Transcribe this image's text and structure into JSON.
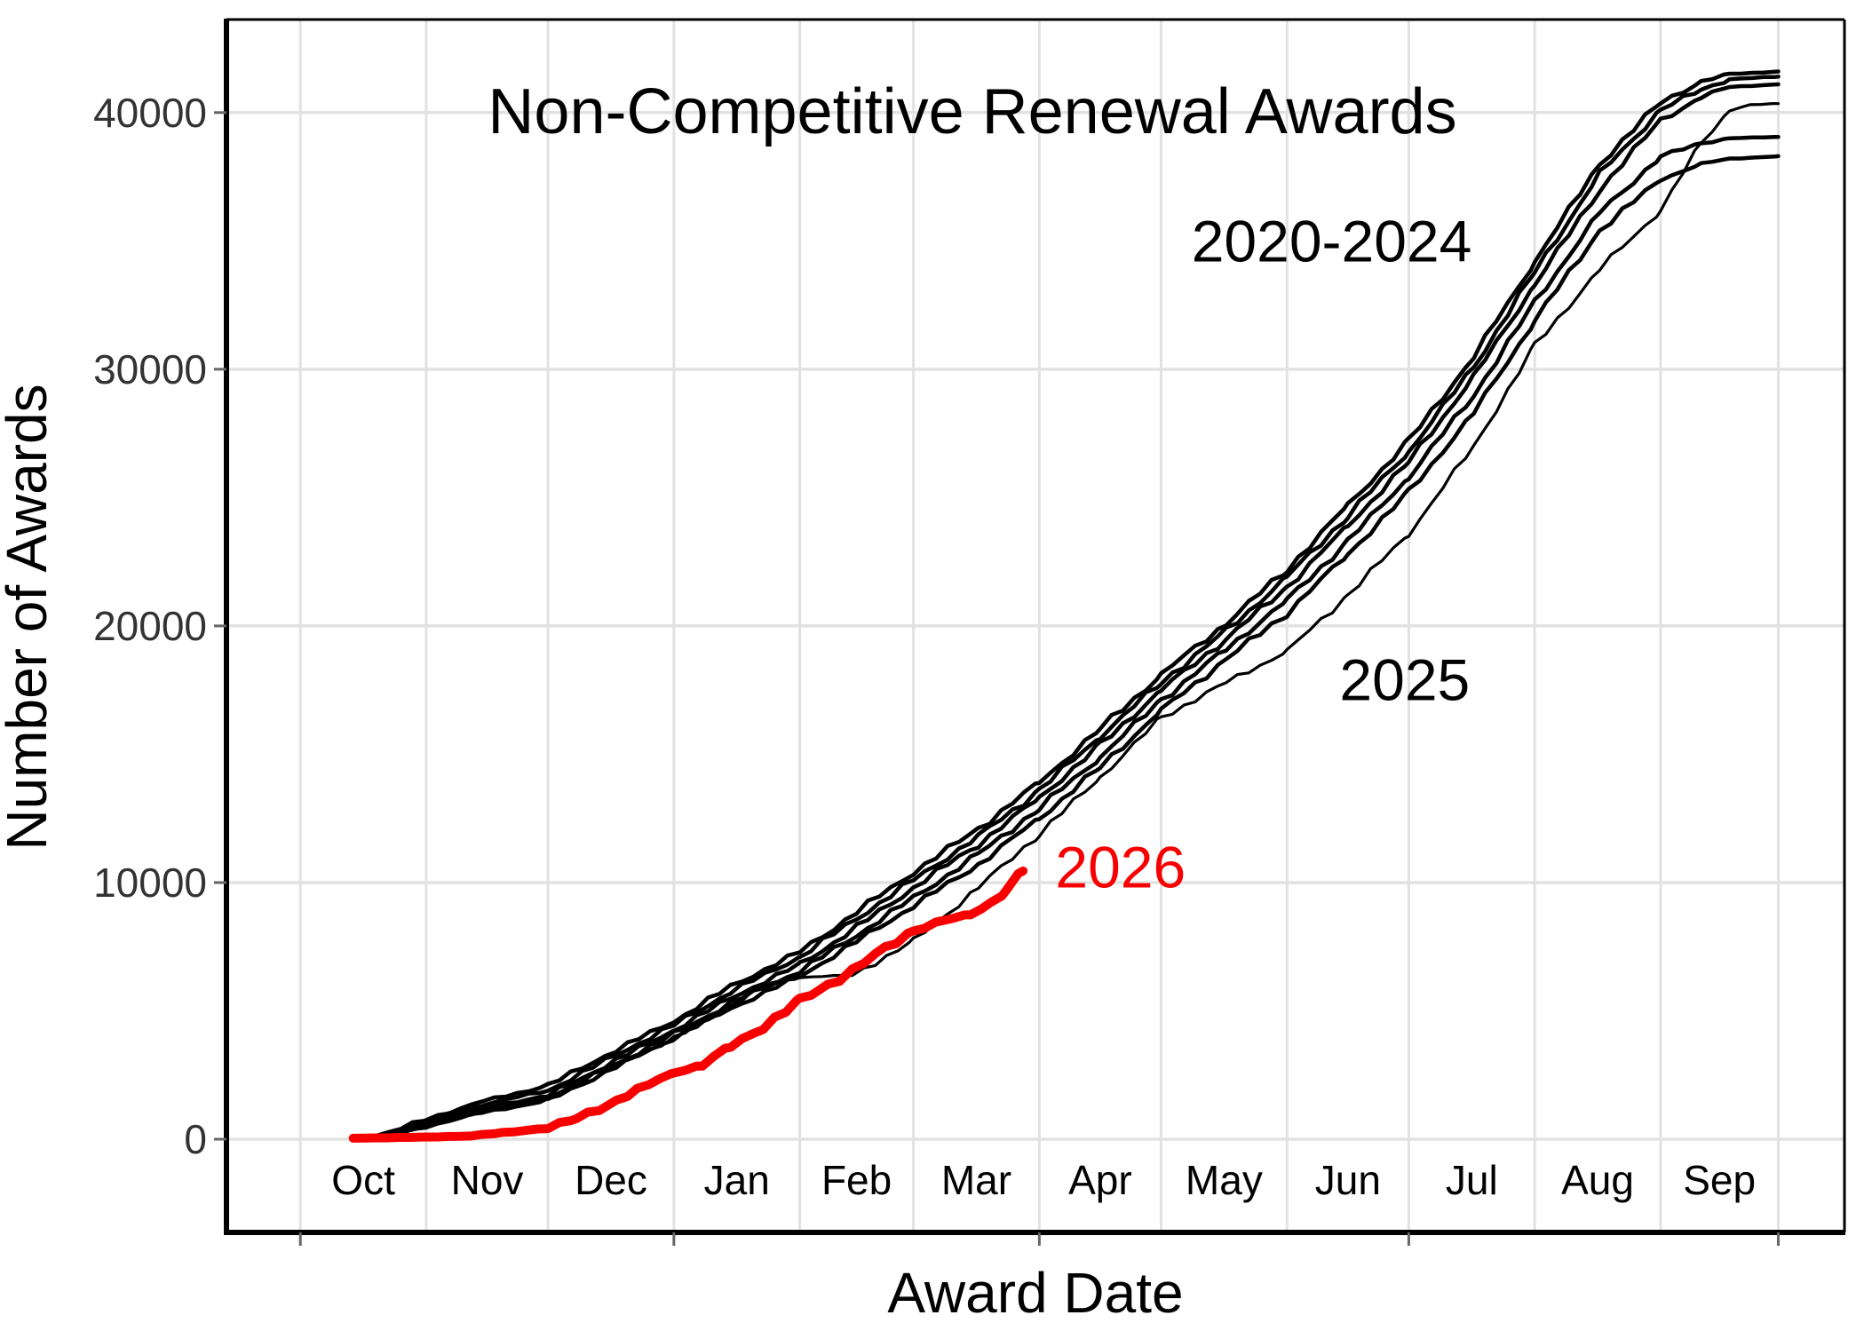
{
  "chart_data": {
    "type": "line",
    "title": "Non-Competitive Renewal Awards",
    "xlabel": "Award Date",
    "ylabel": "Number of Awards",
    "x_unit": "days since Oct 1 (federal fiscal year)",
    "month_labels": [
      "Oct",
      "Nov",
      "Dec",
      "Jan",
      "Feb",
      "Mar",
      "Apr",
      "May",
      "Jun",
      "Jul",
      "Aug",
      "Sep"
    ],
    "month_boundary_days": [
      0,
      31,
      61,
      92,
      123,
      151,
      182,
      212,
      243,
      273,
      304,
      335,
      364
    ],
    "month_label_days": [
      15.5,
      46,
      76.5,
      107.5,
      137,
      166.5,
      197,
      227.5,
      258,
      288.5,
      319.5,
      349.5
    ],
    "x_axis_tick_days": [
      0,
      92,
      182,
      273,
      364
    ],
    "y_ticks": [
      0,
      10000,
      20000,
      30000,
      40000
    ],
    "y_tick_labels": [
      "0",
      "10000",
      "20000",
      "30000",
      "40000"
    ],
    "ylim": [
      -3632,
      43625
    ],
    "xlim_days": [
      -18.2,
      380.3
    ],
    "grid": true,
    "legend": "none (direct line annotations)",
    "colors": {
      "historical_line": "#000000",
      "line_2025": "#000000",
      "line_2026": "#F80000",
      "gridline": "#E2E2E2",
      "y_tick_text": "#333333",
      "x_tick_text": "#000000",
      "axis_line": "#000000",
      "background": "#FFFFFF"
    },
    "series": [
      {
        "name": "2020",
        "group": "2020-2024",
        "color": "#000000",
        "width": 4.5,
        "points": [
          [
            13,
            0
          ],
          [
            22,
            120
          ],
          [
            31,
            500
          ],
          [
            45,
            1050
          ],
          [
            61,
            1500
          ],
          [
            75,
            2600
          ],
          [
            92,
            3950
          ],
          [
            106,
            5100
          ],
          [
            123,
            6350
          ],
          [
            137,
            7700
          ],
          [
            151,
            9100
          ],
          [
            167,
            10700
          ],
          [
            182,
            12500
          ],
          [
            197,
            14500
          ],
          [
            212,
            16700
          ],
          [
            228,
            18700
          ],
          [
            243,
            20500
          ],
          [
            258,
            22800
          ],
          [
            273,
            25200
          ],
          [
            289,
            28300
          ],
          [
            304,
            31900
          ],
          [
            320,
            35400
          ],
          [
            335,
            37400
          ],
          [
            345,
            38000
          ],
          [
            352,
            38200
          ],
          [
            364,
            38300
          ]
        ]
      },
      {
        "name": "2021",
        "group": "2020-2024",
        "color": "#000000",
        "width": 4.5,
        "points": [
          [
            13,
            0
          ],
          [
            22,
            150
          ],
          [
            31,
            560
          ],
          [
            45,
            1120
          ],
          [
            61,
            1600
          ],
          [
            75,
            2700
          ],
          [
            92,
            4100
          ],
          [
            106,
            5300
          ],
          [
            123,
            6550
          ],
          [
            137,
            7950
          ],
          [
            151,
            9400
          ],
          [
            167,
            11100
          ],
          [
            182,
            12900
          ],
          [
            197,
            14900
          ],
          [
            212,
            17100
          ],
          [
            228,
            19100
          ],
          [
            243,
            21000
          ],
          [
            258,
            23300
          ],
          [
            273,
            25800
          ],
          [
            289,
            29000
          ],
          [
            304,
            32600
          ],
          [
            320,
            36100
          ],
          [
            335,
            38300
          ],
          [
            345,
            38800
          ],
          [
            352,
            39000
          ],
          [
            364,
            39050
          ]
        ]
      },
      {
        "name": "2022",
        "group": "2020-2024",
        "color": "#000000",
        "width": 4.5,
        "points": [
          [
            13,
            0
          ],
          [
            22,
            180
          ],
          [
            31,
            620
          ],
          [
            45,
            1220
          ],
          [
            61,
            1700
          ],
          [
            75,
            2850
          ],
          [
            92,
            4250
          ],
          [
            106,
            5500
          ],
          [
            123,
            6800
          ],
          [
            137,
            8250
          ],
          [
            151,
            9800
          ],
          [
            167,
            11500
          ],
          [
            182,
            13300
          ],
          [
            197,
            15350
          ],
          [
            212,
            17500
          ],
          [
            228,
            19500
          ],
          [
            243,
            21500
          ],
          [
            258,
            23900
          ],
          [
            273,
            26400
          ],
          [
            289,
            29700
          ],
          [
            304,
            33300
          ],
          [
            320,
            37000
          ],
          [
            335,
            39700
          ],
          [
            345,
            40600
          ],
          [
            352,
            41000
          ],
          [
            364,
            41100
          ]
        ]
      },
      {
        "name": "2023",
        "group": "2020-2024",
        "color": "#000000",
        "width": 4.5,
        "points": [
          [
            13,
            0
          ],
          [
            22,
            220
          ],
          [
            31,
            700
          ],
          [
            45,
            1350
          ],
          [
            61,
            1900
          ],
          [
            75,
            3050
          ],
          [
            92,
            4450
          ],
          [
            106,
            5750
          ],
          [
            123,
            7100
          ],
          [
            137,
            8600
          ],
          [
            151,
            10100
          ],
          [
            167,
            11800
          ],
          [
            182,
            13600
          ],
          [
            197,
            15700
          ],
          [
            212,
            17800
          ],
          [
            228,
            19800
          ],
          [
            243,
            21900
          ],
          [
            258,
            24300
          ],
          [
            273,
            26800
          ],
          [
            289,
            30100
          ],
          [
            304,
            33800
          ],
          [
            320,
            37600
          ],
          [
            335,
            40100
          ],
          [
            345,
            40900
          ],
          [
            352,
            41300
          ],
          [
            364,
            41400
          ]
        ]
      },
      {
        "name": "2024",
        "group": "2020-2024",
        "color": "#000000",
        "width": 4.5,
        "points": [
          [
            13,
            0
          ],
          [
            22,
            260
          ],
          [
            31,
            780
          ],
          [
            45,
            1480
          ],
          [
            61,
            2080
          ],
          [
            75,
            3250
          ],
          [
            92,
            4600
          ],
          [
            106,
            5950
          ],
          [
            123,
            7300
          ],
          [
            137,
            8850
          ],
          [
            151,
            10400
          ],
          [
            167,
            12100
          ],
          [
            182,
            13900
          ],
          [
            197,
            16000
          ],
          [
            212,
            18100
          ],
          [
            228,
            20100
          ],
          [
            243,
            22200
          ],
          [
            258,
            24700
          ],
          [
            273,
            27200
          ],
          [
            289,
            30500
          ],
          [
            304,
            34200
          ],
          [
            320,
            38000
          ],
          [
            335,
            40400
          ],
          [
            345,
            41200
          ],
          [
            352,
            41500
          ],
          [
            364,
            41600
          ]
        ]
      },
      {
        "name": "2025",
        "group": "2025",
        "color": "#000000",
        "width": 3.2,
        "points": [
          [
            13,
            0
          ],
          [
            22,
            140
          ],
          [
            31,
            520
          ],
          [
            45,
            1100
          ],
          [
            61,
            1650
          ],
          [
            75,
            2700
          ],
          [
            92,
            3900
          ],
          [
            106,
            5200
          ],
          [
            116,
            6100
          ],
          [
            123,
            6300
          ],
          [
            136,
            6400
          ],
          [
            151,
            7700
          ],
          [
            167,
            9800
          ],
          [
            182,
            11900
          ],
          [
            197,
            14100
          ],
          [
            212,
            16400
          ],
          [
            228,
            17800
          ],
          [
            243,
            19000
          ],
          [
            258,
            21200
          ],
          [
            273,
            23600
          ],
          [
            289,
            27000
          ],
          [
            304,
            30900
          ],
          [
            320,
            33900
          ],
          [
            335,
            36200
          ],
          [
            345,
            38800
          ],
          [
            352,
            40100
          ],
          [
            357,
            40300
          ],
          [
            364,
            40350
          ]
        ]
      },
      {
        "name": "2026",
        "group": "2026",
        "color": "#F80000",
        "width": 10,
        "points": [
          [
            13,
            40
          ],
          [
            31,
            80
          ],
          [
            42,
            130
          ],
          [
            50,
            250
          ],
          [
            61,
            450
          ],
          [
            68,
            800
          ],
          [
            75,
            1300
          ],
          [
            83,
            1900
          ],
          [
            92,
            2600
          ],
          [
            99,
            2900
          ],
          [
            106,
            3600
          ],
          [
            114,
            4400
          ],
          [
            123,
            5380
          ],
          [
            130,
            6000
          ],
          [
            136,
            6600
          ],
          [
            144,
            7400
          ],
          [
            151,
            8130
          ],
          [
            158,
            8500
          ],
          [
            165,
            8750
          ],
          [
            170,
            9200
          ],
          [
            174,
            9800
          ],
          [
            178,
            10450
          ]
        ]
      }
    ],
    "annotations": [
      {
        "text": "2020-2024",
        "day": 254,
        "value": 35000,
        "color": "#000000"
      },
      {
        "text": "2025",
        "day": 272,
        "value": 17900,
        "color": "#000000"
      },
      {
        "text": "2026",
        "day": 202,
        "value": 10600,
        "color": "#F80000"
      }
    ]
  }
}
